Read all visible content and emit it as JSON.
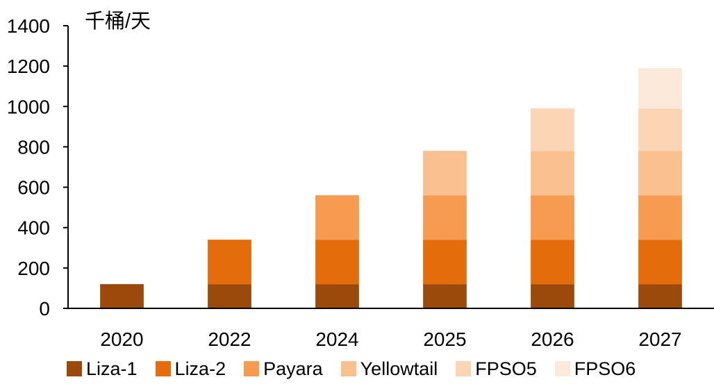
{
  "chart_data": {
    "type": "bar",
    "stacked": true,
    "title": "",
    "xlabel": "",
    "ylabel": "千桶/天",
    "ylim": [
      0,
      1400
    ],
    "yticks": [
      0,
      200,
      400,
      600,
      800,
      1000,
      1200,
      1400
    ],
    "categories": [
      "2020",
      "2022",
      "2024",
      "2025",
      "2026",
      "2027"
    ],
    "series": [
      {
        "name": "Liza-1",
        "color": "#9C4A0C",
        "values": [
          120,
          120,
          120,
          120,
          120,
          120
        ]
      },
      {
        "name": "Liza-2",
        "color": "#E46C0A",
        "values": [
          0,
          220,
          220,
          220,
          220,
          220
        ]
      },
      {
        "name": "Payara",
        "color": "#F79B50",
        "values": [
          0,
          0,
          220,
          220,
          220,
          220
        ]
      },
      {
        "name": "Yellowtail",
        "color": "#FAC090",
        "values": [
          0,
          0,
          0,
          220,
          220,
          220
        ]
      },
      {
        "name": "FPSO5",
        "color": "#FCD5B4",
        "values": [
          0,
          0,
          0,
          0,
          210,
          210
        ]
      },
      {
        "name": "FPSO6",
        "color": "#FDE9D9",
        "values": [
          0,
          0,
          0,
          0,
          0,
          200
        ]
      }
    ],
    "grid": false,
    "legend_position": "bottom"
  }
}
